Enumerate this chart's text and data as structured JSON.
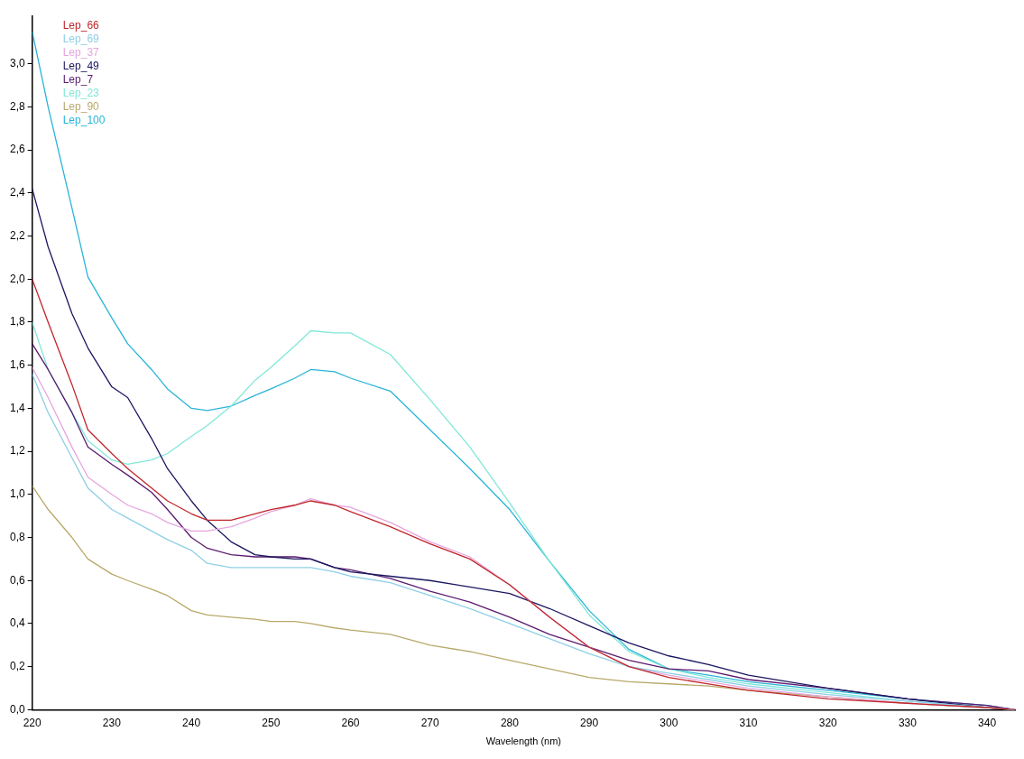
{
  "chart_data": {
    "type": "line",
    "xlabel": "Wavelength (nm)",
    "legend": "top left",
    "grid": false,
    "marker": "none",
    "line_style": "solid",
    "x": [
      220,
      222,
      225,
      227,
      230,
      232,
      235,
      237,
      240,
      242,
      245,
      248,
      250,
      253,
      255,
      258,
      260,
      265,
      270,
      275,
      280,
      285,
      290,
      295,
      300,
      305,
      310,
      320,
      330,
      340,
      343.5
    ],
    "xlim": [
      220,
      343.5
    ],
    "xticks": [
      220,
      230,
      240,
      250,
      260,
      270,
      280,
      290,
      300,
      310,
      320,
      330,
      340
    ],
    "ylim": [
      0,
      3.22
    ],
    "yticks": [
      {
        "value": 0,
        "label": "0,0"
      },
      {
        "value": 0.2,
        "label": "0,2"
      },
      {
        "value": 0.4,
        "label": "0,4"
      },
      {
        "value": 0.6,
        "label": "0,6"
      },
      {
        "value": 0.8,
        "label": "0,8"
      },
      {
        "value": 1,
        "label": "1,0"
      },
      {
        "value": 1.2,
        "label": "1,2"
      },
      {
        "value": 1.4,
        "label": "1,4"
      },
      {
        "value": 1.6,
        "label": "1,6"
      },
      {
        "value": 1.8,
        "label": "1,8"
      },
      {
        "value": 2,
        "label": "2,0"
      },
      {
        "value": 2.2,
        "label": "2,2"
      },
      {
        "value": 2.4,
        "label": "2,4"
      },
      {
        "value": 2.6,
        "label": "2,6"
      },
      {
        "value": 2.8,
        "label": "2,8"
      },
      {
        "value": 3,
        "label": "3,0"
      }
    ],
    "series": [
      {
        "name": "Lep_66",
        "color": "#c0262b",
        "values": [
          2.0,
          1.8,
          1.51,
          1.3,
          1.19,
          1.12,
          1.03,
          0.97,
          0.91,
          0.88,
          0.88,
          0.91,
          0.93,
          0.95,
          0.97,
          0.95,
          0.92,
          0.85,
          0.77,
          0.7,
          0.58,
          0.43,
          0.29,
          0.2,
          0.15,
          0.12,
          0.09,
          0.05,
          0.03,
          0.01,
          0
        ]
      },
      {
        "name": "Lep_69",
        "color": "#8ecfe6",
        "values": [
          1.56,
          1.38,
          1.17,
          1.03,
          0.93,
          0.89,
          0.83,
          0.79,
          0.74,
          0.68,
          0.66,
          0.66,
          0.66,
          0.66,
          0.66,
          0.64,
          0.62,
          0.59,
          0.53,
          0.47,
          0.4,
          0.33,
          0.26,
          0.2,
          0.17,
          0.14,
          0.11,
          0.07,
          0.04,
          0.01,
          0
        ]
      },
      {
        "name": "Lep_37",
        "color": "#e5a6dd",
        "values": [
          1.59,
          1.45,
          1.22,
          1.08,
          1.0,
          0.95,
          0.91,
          0.87,
          0.83,
          0.83,
          0.85,
          0.89,
          0.92,
          0.95,
          0.98,
          0.95,
          0.94,
          0.87,
          0.78,
          0.71,
          0.58,
          0.43,
          0.29,
          0.2,
          0.16,
          0.13,
          0.1,
          0.06,
          0.03,
          0.01,
          0
        ]
      },
      {
        "name": "Lep_49",
        "color": "#1a1660",
        "values": [
          2.42,
          2.15,
          1.84,
          1.68,
          1.5,
          1.45,
          1.26,
          1.12,
          0.97,
          0.88,
          0.78,
          0.72,
          0.71,
          0.7,
          0.7,
          0.66,
          0.64,
          0.62,
          0.6,
          0.57,
          0.54,
          0.47,
          0.39,
          0.31,
          0.25,
          0.21,
          0.16,
          0.1,
          0.05,
          0.01,
          0
        ]
      },
      {
        "name": "Lep_7",
        "color": "#5a1a6e",
        "values": [
          1.7,
          1.58,
          1.38,
          1.22,
          1.14,
          1.09,
          1.01,
          0.93,
          0.8,
          0.75,
          0.72,
          0.71,
          0.71,
          0.71,
          0.7,
          0.66,
          0.65,
          0.61,
          0.55,
          0.5,
          0.43,
          0.35,
          0.29,
          0.23,
          0.19,
          0.18,
          0.14,
          0.1,
          0.05,
          0.02,
          0
        ]
      },
      {
        "name": "Lep_23",
        "color": "#80e8d8",
        "values": [
          1.8,
          1.58,
          1.38,
          1.25,
          1.16,
          1.14,
          1.16,
          1.19,
          1.27,
          1.32,
          1.41,
          1.53,
          1.59,
          1.69,
          1.76,
          1.75,
          1.75,
          1.65,
          1.44,
          1.22,
          0.96,
          0.69,
          0.44,
          0.27,
          0.19,
          0.15,
          0.12,
          0.08,
          0.04,
          0.01,
          0
        ]
      },
      {
        "name": "Lep_90",
        "color": "#b8a96a",
        "values": [
          1.04,
          0.93,
          0.8,
          0.7,
          0.63,
          0.6,
          0.56,
          0.53,
          0.46,
          0.44,
          0.43,
          0.42,
          0.41,
          0.41,
          0.4,
          0.38,
          0.37,
          0.35,
          0.3,
          0.27,
          0.23,
          0.19,
          0.15,
          0.13,
          0.12,
          0.11,
          0.09,
          0.06,
          0.03,
          0.01,
          0
        ]
      },
      {
        "name": "Lep_100",
        "color": "#28b4d8",
        "values": [
          3.15,
          2.8,
          2.33,
          2.01,
          1.82,
          1.7,
          1.58,
          1.49,
          1.4,
          1.39,
          1.41,
          1.46,
          1.49,
          1.54,
          1.58,
          1.57,
          1.54,
          1.48,
          1.3,
          1.12,
          0.93,
          0.69,
          0.46,
          0.28,
          0.19,
          0.16,
          0.13,
          0.09,
          0.05,
          0.02,
          0
        ]
      }
    ]
  }
}
